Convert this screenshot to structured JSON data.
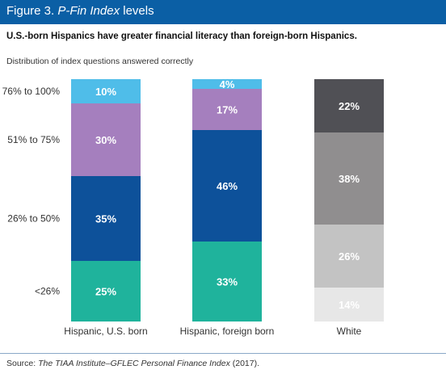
{
  "figure": {
    "label": "Figure 3.",
    "title_italic": "P-Fin Index",
    "title_rest": "levels"
  },
  "headline": "U.S.-born Hispanics have greater financial literacy than foreign-born Hispanics.",
  "subtitle": "Distribution of index questions answered correctly",
  "source": {
    "prefix": "Source: ",
    "italic": "The TIAA Institute–GFLEC Personal Finance Index",
    "suffix": " (2017)."
  },
  "chart_data": {
    "type": "bar",
    "stacked": true,
    "normalized": true,
    "categories": [
      "Hispanic, U.S. born",
      "Hispanic, foreign born",
      "White"
    ],
    "bands": [
      "<26%",
      "26% to 50%",
      "51% to 75%",
      "76% to 100%"
    ],
    "band_values": [
      [
        25,
        35,
        30,
        10
      ],
      [
        33,
        46,
        17,
        4
      ],
      [
        14,
        26,
        38,
        22
      ]
    ],
    "band_colors": [
      [
        "#1fb39c",
        "#0d519a",
        "#a57fbe",
        "#4fbde9"
      ],
      [
        "#1fb39c",
        "#0d519a",
        "#a57fbe",
        "#4fbde9"
      ],
      [
        "#e7e7e7",
        "#c3c3c3",
        "#908e8f",
        "#505055"
      ]
    ],
    "label_colors": [
      [
        "#ffffff",
        "#ffffff",
        "#ffffff",
        "#ffffff"
      ],
      [
        "#ffffff",
        "#ffffff",
        "#ffffff",
        "#ffffff"
      ],
      [
        "#ffffff",
        "#ffffff",
        "#ffffff",
        "#ffffff"
      ]
    ]
  }
}
